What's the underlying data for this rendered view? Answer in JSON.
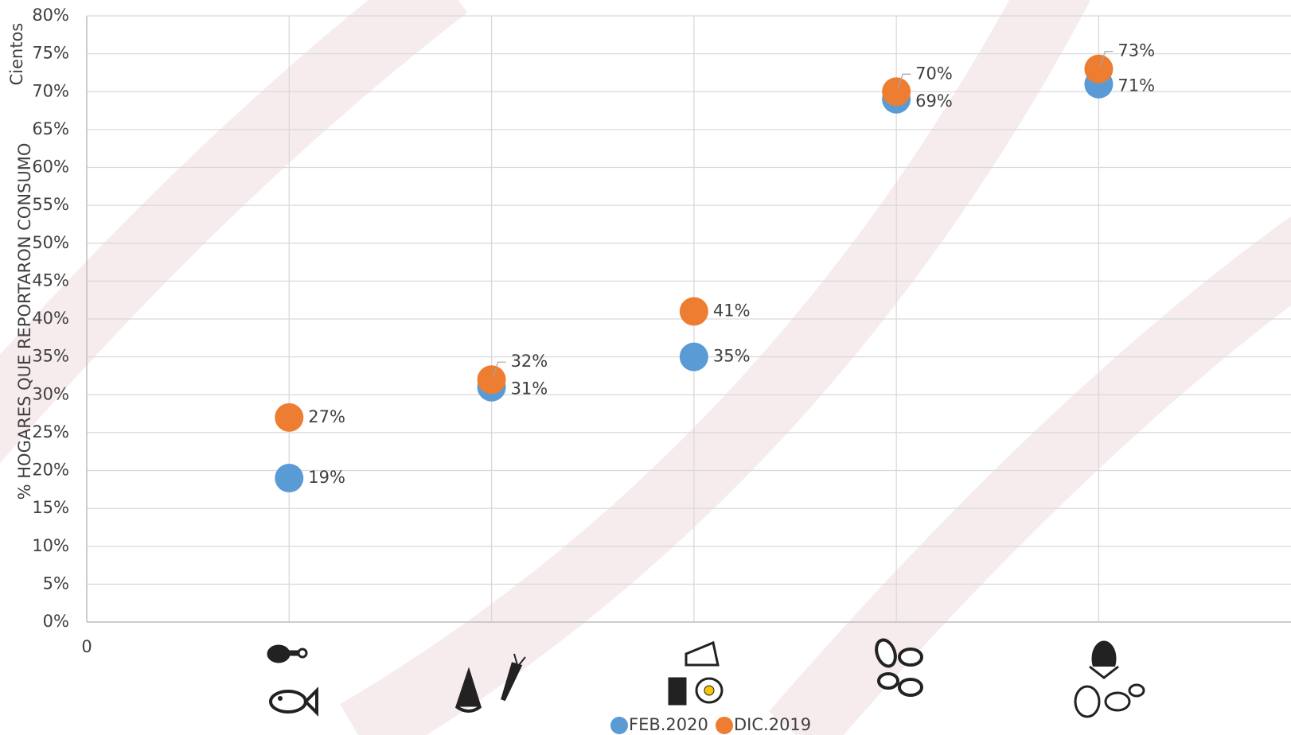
{
  "chart_data": {
    "type": "scatter",
    "y_label": "% HOGARES QUE REPORTARON CONSUMO",
    "y_unit_label": "Cientos",
    "x": [
      1,
      2,
      3,
      4,
      5
    ],
    "xlim": [
      0,
      5.95
    ],
    "xticks": [
      0
    ],
    "ylim": [
      0,
      80
    ],
    "yticks": [
      {
        "value": 0,
        "label": "0%"
      },
      {
        "value": 5,
        "label": "5%"
      },
      {
        "value": 10,
        "label": "10%"
      },
      {
        "value": 15,
        "label": "15%"
      },
      {
        "value": 20,
        "label": "20%"
      },
      {
        "value": 25,
        "label": "25%"
      },
      {
        "value": 30,
        "label": "30%"
      },
      {
        "value": 35,
        "label": "35%"
      },
      {
        "value": 40,
        "label": "40%"
      },
      {
        "value": 45,
        "label": "45%"
      },
      {
        "value": 50,
        "label": "50%"
      },
      {
        "value": 55,
        "label": "55%"
      },
      {
        "value": 60,
        "label": "60%"
      },
      {
        "value": 65,
        "label": "65%"
      },
      {
        "value": 70,
        "label": "70%"
      },
      {
        "value": 75,
        "label": "75%"
      },
      {
        "value": 80,
        "label": "80%"
      }
    ],
    "grid": true,
    "legend": "bottom",
    "series": [
      {
        "name": "FEB.2020",
        "color": "#5b9bd5",
        "values": [
          19,
          31,
          35,
          69,
          71
        ],
        "value_labels": [
          "19%",
          "31%",
          "35%",
          "69%",
          "71%"
        ]
      },
      {
        "name": "DIC.2019",
        "color": "#ed7d31",
        "values": [
          27,
          32,
          41,
          70,
          73
        ],
        "value_labels": [
          "27%",
          "32%",
          "41%",
          "70%",
          "73%"
        ]
      }
    ]
  }
}
